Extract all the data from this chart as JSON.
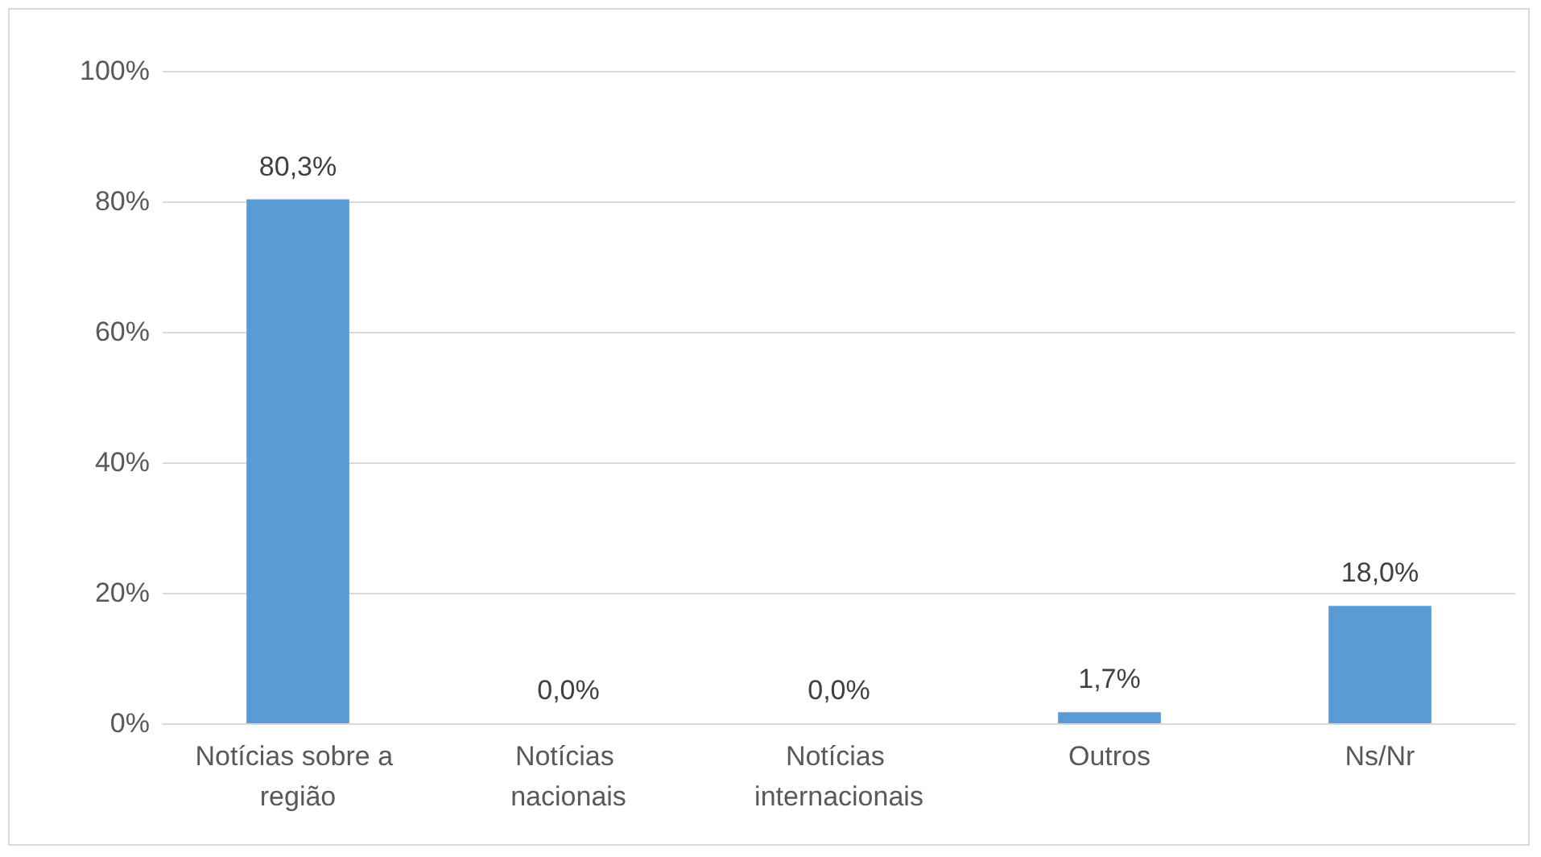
{
  "chart_data": {
    "type": "bar",
    "categories": [
      "Notícias sobre a região",
      "Notícias nacionais",
      "Notícias internacionais",
      "Outros",
      "Ns/Nr"
    ],
    "values": [
      80.3,
      0,
      0,
      1.7,
      18.0
    ],
    "value_labels": [
      "80,3%",
      "0,0%",
      "0,0%",
      "1,7%",
      "18,0%"
    ],
    "color": "#5b9bd5",
    "ylim": [
      0,
      100
    ],
    "yticks": [
      {
        "value": 0,
        "label": "0%"
      },
      {
        "value": 20,
        "label": "20%"
      },
      {
        "value": 40,
        "label": "40%"
      },
      {
        "value": 60,
        "label": "60%"
      },
      {
        "value": 80,
        "label": "80%"
      },
      {
        "value": 100,
        "label": "100%"
      }
    ],
    "grid": "y"
  }
}
